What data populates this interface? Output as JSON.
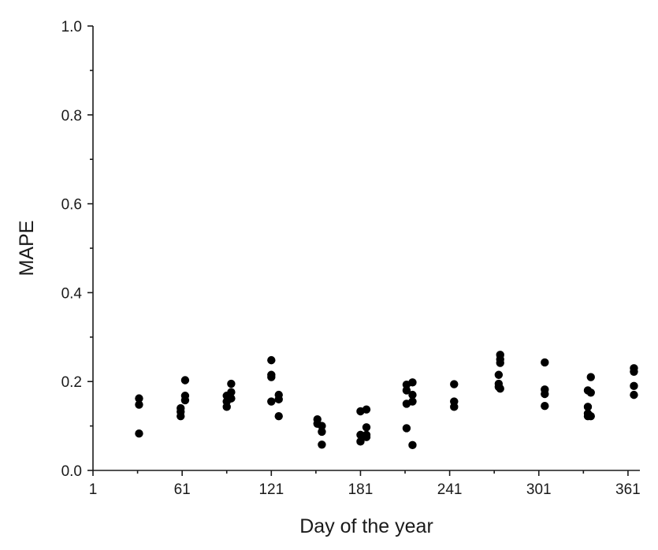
{
  "chart_data": {
    "type": "scatter",
    "title": "",
    "xlabel": "Day of the year",
    "ylabel": "MAPE",
    "xlim": [
      1,
      369
    ],
    "ylim": [
      0,
      1
    ],
    "x_ticks": [
      1,
      61,
      121,
      181,
      241,
      301,
      361
    ],
    "x_tick_labels": [
      "1",
      "61",
      "121",
      "181",
      "241",
      "301",
      "361"
    ],
    "y_ticks": [
      0,
      0.2,
      0.4,
      0.6,
      0.8,
      1.0
    ],
    "y_tick_labels": [
      "0.0",
      "0.2",
      "0.4",
      "0.6",
      "0.8",
      "1.0"
    ],
    "grid": false,
    "legend": "none",
    "marker_color": "#000000",
    "series": [
      {
        "points": [
          {
            "x": 32,
            "y": 0.162
          },
          {
            "x": 32,
            "y": 0.148
          },
          {
            "x": 32,
            "y": 0.083
          },
          {
            "x": 60,
            "y": 0.14
          },
          {
            "x": 60,
            "y": 0.132
          },
          {
            "x": 60,
            "y": 0.122
          },
          {
            "x": 63,
            "y": 0.203
          },
          {
            "x": 63,
            "y": 0.168
          },
          {
            "x": 63,
            "y": 0.158
          },
          {
            "x": 91,
            "y": 0.168
          },
          {
            "x": 91,
            "y": 0.155
          },
          {
            "x": 91,
            "y": 0.143
          },
          {
            "x": 94,
            "y": 0.195
          },
          {
            "x": 94,
            "y": 0.176
          },
          {
            "x": 94,
            "y": 0.162
          },
          {
            "x": 121,
            "y": 0.248
          },
          {
            "x": 121,
            "y": 0.215
          },
          {
            "x": 121,
            "y": 0.21
          },
          {
            "x": 121,
            "y": 0.155
          },
          {
            "x": 126,
            "y": 0.17
          },
          {
            "x": 126,
            "y": 0.16
          },
          {
            "x": 126,
            "y": 0.122
          },
          {
            "x": 152,
            "y": 0.115
          },
          {
            "x": 152,
            "y": 0.105
          },
          {
            "x": 155,
            "y": 0.1
          },
          {
            "x": 155,
            "y": 0.087
          },
          {
            "x": 155,
            "y": 0.058
          },
          {
            "x": 181,
            "y": 0.133
          },
          {
            "x": 181,
            "y": 0.08
          },
          {
            "x": 181,
            "y": 0.065
          },
          {
            "x": 185,
            "y": 0.137
          },
          {
            "x": 185,
            "y": 0.097
          },
          {
            "x": 185,
            "y": 0.08
          },
          {
            "x": 185,
            "y": 0.075
          },
          {
            "x": 212,
            "y": 0.193
          },
          {
            "x": 212,
            "y": 0.18
          },
          {
            "x": 212,
            "y": 0.15
          },
          {
            "x": 212,
            "y": 0.095
          },
          {
            "x": 216,
            "y": 0.198
          },
          {
            "x": 216,
            "y": 0.17
          },
          {
            "x": 216,
            "y": 0.155
          },
          {
            "x": 216,
            "y": 0.057
          },
          {
            "x": 244,
            "y": 0.194
          },
          {
            "x": 244,
            "y": 0.155
          },
          {
            "x": 244,
            "y": 0.143
          },
          {
            "x": 274,
            "y": 0.215
          },
          {
            "x": 274,
            "y": 0.195
          },
          {
            "x": 274,
            "y": 0.188
          },
          {
            "x": 275,
            "y": 0.26
          },
          {
            "x": 275,
            "y": 0.25
          },
          {
            "x": 275,
            "y": 0.242
          },
          {
            "x": 275,
            "y": 0.184
          },
          {
            "x": 305,
            "y": 0.243
          },
          {
            "x": 305,
            "y": 0.182
          },
          {
            "x": 305,
            "y": 0.172
          },
          {
            "x": 305,
            "y": 0.145
          },
          {
            "x": 334,
            "y": 0.18
          },
          {
            "x": 334,
            "y": 0.143
          },
          {
            "x": 334,
            "y": 0.128
          },
          {
            "x": 334,
            "y": 0.122
          },
          {
            "x": 336,
            "y": 0.21
          },
          {
            "x": 336,
            "y": 0.175
          },
          {
            "x": 336,
            "y": 0.122
          },
          {
            "x": 365,
            "y": 0.23
          },
          {
            "x": 365,
            "y": 0.222
          },
          {
            "x": 365,
            "y": 0.19
          },
          {
            "x": 365,
            "y": 0.17
          }
        ]
      }
    ]
  }
}
